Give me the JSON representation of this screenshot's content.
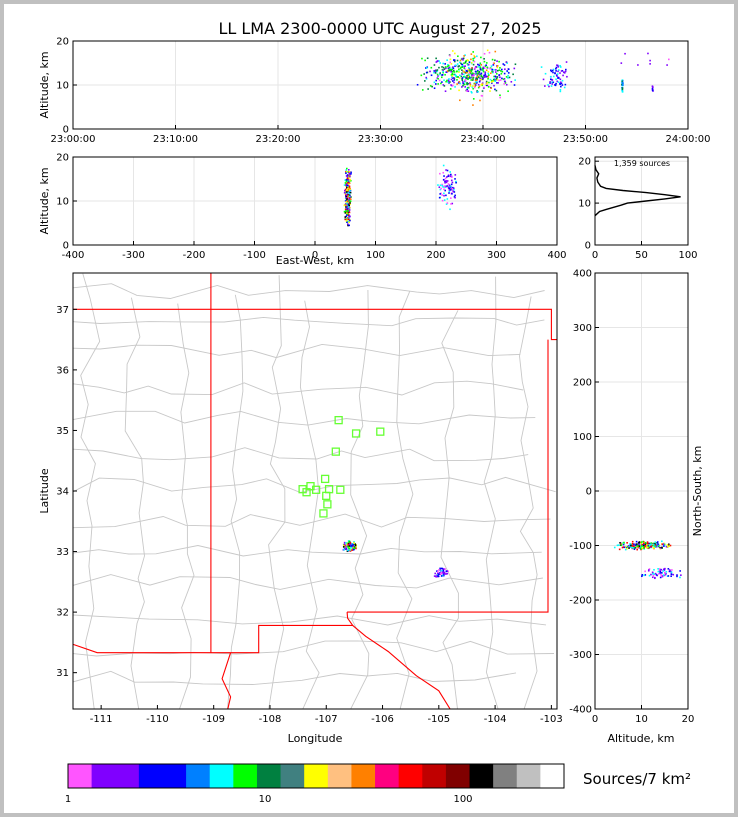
{
  "title": "LL LMA 2300-0000 UTC August 27, 2025",
  "colors": {
    "frame": "#c0c0c0",
    "map_state": "#ff0000",
    "map_county": "#c8c8c8",
    "station": "#66ff33",
    "grid": "#e6e6e6"
  },
  "colorbar": {
    "label": "Sources/7 km²",
    "tick_labels": [
      "1",
      "10",
      "100"
    ],
    "colors": [
      "#ff55ff",
      "#8000ff",
      "#8000ff",
      "#0000ff",
      "#0000ff",
      "#0080ff",
      "#00ffff",
      "#00ff00",
      "#008040",
      "#408080",
      "#ffff00",
      "#ffc080",
      "#ff8000",
      "#ff0080",
      "#ff0000",
      "#c00000",
      "#800000",
      "#000000",
      "#808080",
      "#c0c0c0",
      "#ffffff"
    ]
  },
  "chart_data": [
    {
      "id": "time_height",
      "type": "scatter",
      "xlabel": "",
      "ylabel": "Altitude, km",
      "xlim": [
        0,
        60
      ],
      "ylim": [
        0,
        20
      ],
      "x_tick_labels": [
        "23:00:00",
        "23:10:00",
        "23:20:00",
        "23:30:00",
        "23:40:00",
        "23:50:00",
        "24:00:00"
      ],
      "x_ticks": [
        0,
        10,
        20,
        30,
        40,
        50,
        60
      ],
      "y_ticks": [
        0,
        10,
        20
      ],
      "clusters": [
        {
          "x": [
            33.5,
            43.5
          ],
          "y": [
            8,
            17
          ],
          "n": 420,
          "c": [
            "#8000ff",
            "#0000ff",
            "#00ff00",
            "#008040",
            "#00ffff"
          ]
        },
        {
          "x": [
            35.5,
            42.5
          ],
          "y": [
            5,
            19
          ],
          "n": 120,
          "c": [
            "#ff55ff",
            "#ffff00",
            "#ff8000",
            "#00ff00"
          ]
        },
        {
          "x": [
            45.5,
            48.5
          ],
          "y": [
            8,
            16
          ],
          "n": 70,
          "c": [
            "#8000ff",
            "#0000ff",
            "#00ffff"
          ]
        },
        {
          "x": [
            53.5,
            53.7
          ],
          "y": [
            8,
            12
          ],
          "n": 25,
          "c": [
            "#0080ff",
            "#008040",
            "#00ffff"
          ]
        },
        {
          "x": [
            56.5,
            56.6
          ],
          "y": [
            8.5,
            10
          ],
          "n": 8,
          "c": [
            "#8000ff",
            "#0000ff"
          ]
        },
        {
          "x": [
            51.5,
            59.6
          ],
          "y": [
            14,
            18
          ],
          "n": 8,
          "c": [
            "#ff55ff",
            "#8000ff"
          ]
        }
      ]
    },
    {
      "id": "ew_height",
      "type": "scatter",
      "xlabel": "East-West, km",
      "ylabel": "Altitude, km",
      "xlim": [
        -400,
        400
      ],
      "ylim": [
        0,
        20
      ],
      "x_ticks": [
        -400,
        -300,
        -200,
        -100,
        0,
        100,
        200,
        300,
        400
      ],
      "y_ticks": [
        0,
        10,
        20
      ],
      "clusters": [
        {
          "x": [
            48,
            60
          ],
          "y": [
            4,
            18
          ],
          "n": 260,
          "c": [
            "#8000ff",
            "#0000ff",
            "#ff0000",
            "#000000",
            "#ffff00",
            "#00ff00",
            "#ff8000",
            "#00ffff"
          ]
        },
        {
          "x": [
            200,
            235
          ],
          "y": [
            8,
            19
          ],
          "n": 90,
          "c": [
            "#8000ff",
            "#0000ff",
            "#ff55ff",
            "#00ffff"
          ]
        }
      ]
    },
    {
      "id": "altitude_histogram",
      "type": "line",
      "annotation": "1,359 sources",
      "xlim": [
        0,
        100
      ],
      "ylim": [
        0,
        21
      ],
      "x_ticks": [
        0,
        50,
        100
      ],
      "y_ticks": [
        0,
        10,
        20
      ],
      "points": [
        [
          0,
          7
        ],
        [
          5,
          8
        ],
        [
          12,
          8.5
        ],
        [
          20,
          9
        ],
        [
          28,
          9.5
        ],
        [
          35,
          10
        ],
        [
          55,
          10.5
        ],
        [
          75,
          11
        ],
        [
          92,
          11.5
        ],
        [
          75,
          12
        ],
        [
          55,
          12.5
        ],
        [
          30,
          13
        ],
        [
          12,
          13.5
        ],
        [
          6,
          14
        ],
        [
          3,
          15
        ],
        [
          2,
          16
        ],
        [
          4,
          17
        ],
        [
          1,
          18
        ],
        [
          0,
          19
        ]
      ]
    },
    {
      "id": "plan_view",
      "type": "scatter",
      "xlabel": "Longitude",
      "ylabel": "Latitude",
      "xlim": [
        -111.5,
        -102.9
      ],
      "ylim": [
        30.4,
        37.6
      ],
      "x_ticks": [
        -111,
        -110,
        -109,
        -108,
        -107,
        -106,
        -105,
        -104,
        -103
      ],
      "y_ticks": [
        31,
        32,
        33,
        34,
        35,
        36,
        37
      ],
      "stations": [
        [
          -106.78,
          35.17
        ],
        [
          -106.47,
          34.95
        ],
        [
          -106.04,
          34.98
        ],
        [
          -106.83,
          34.65
        ],
        [
          -107.02,
          34.2
        ],
        [
          -107.28,
          34.08
        ],
        [
          -107.42,
          34.03
        ],
        [
          -107.18,
          34.02
        ],
        [
          -107.35,
          33.98
        ],
        [
          -106.95,
          34.03
        ],
        [
          -106.75,
          34.02
        ],
        [
          -107.0,
          33.92
        ],
        [
          -106.98,
          33.78
        ],
        [
          -107.05,
          33.63
        ]
      ],
      "clusters": [
        {
          "x": [
            -106.72,
            -106.45
          ],
          "y": [
            33.0,
            33.18
          ],
          "n": 120,
          "c": [
            "#8000ff",
            "#0000ff",
            "#ff0000",
            "#000000",
            "#ffff00",
            "#00ff00",
            "#00ffff"
          ]
        },
        {
          "x": [
            -105.1,
            -104.82
          ],
          "y": [
            32.55,
            32.75
          ],
          "n": 60,
          "c": [
            "#8000ff",
            "#0000ff",
            "#ff55ff",
            "#00ffff"
          ]
        }
      ]
    },
    {
      "id": "ns_height",
      "type": "scatter",
      "xlabel": "Altitude, km",
      "ylabel": "North-South, km",
      "xlim": [
        0,
        20
      ],
      "ylim": [
        -400,
        400
      ],
      "x_ticks": [
        0,
        10,
        20
      ],
      "y_ticks": [
        -400,
        -300,
        -200,
        -100,
        0,
        100,
        200,
        300,
        400
      ],
      "clusters": [
        {
          "x": [
            4,
            17
          ],
          "y": [
            -108,
            -92
          ],
          "n": 220,
          "c": [
            "#8000ff",
            "#0000ff",
            "#ff0000",
            "#000000",
            "#ffff00",
            "#00ff00",
            "#00ffff"
          ]
        },
        {
          "x": [
            9,
            19
          ],
          "y": [
            -162,
            -140
          ],
          "n": 70,
          "c": [
            "#8000ff",
            "#0000ff",
            "#ff55ff",
            "#00ffff"
          ]
        }
      ]
    }
  ]
}
